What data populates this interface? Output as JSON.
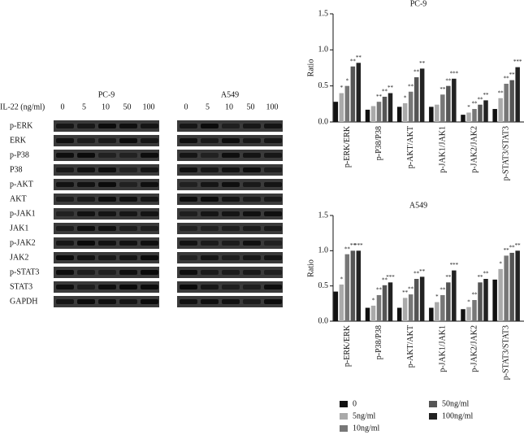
{
  "blot": {
    "lines": [
      "PC-9",
      "A549"
    ],
    "dose_label": "IL-22 (ng/ml)",
    "doses": [
      "0",
      "5",
      "10",
      "50",
      "100"
    ],
    "proteins": [
      "p-ERK",
      "ERK",
      "p-P38",
      "P38",
      "p-AKT",
      "AKT",
      "p-JAK1",
      "JAK1",
      "p-JAK2",
      "JAK2",
      "p-STAT3",
      "STAT3",
      "GAPDH"
    ]
  },
  "chart_data": [
    {
      "type": "bar",
      "title": "PC-9",
      "ylabel": "Ratio",
      "ylim": [
        0,
        1.5
      ],
      "yticks": [
        0.0,
        0.5,
        1.0,
        1.5
      ],
      "categories": [
        "p-ERK/ERK",
        "p-P38/P38",
        "p-AKT/AKT",
        "p-JAK1/JAK1",
        "p-JAK2/JAK2",
        "p-STAT3/STAT3"
      ],
      "series": [
        {
          "color": "#111111",
          "values": [
            0.28,
            0.17,
            0.21,
            0.21,
            0.1,
            0.18
          ]
        },
        {
          "color": "#aaaaaa",
          "values": [
            0.4,
            0.22,
            0.26,
            0.24,
            0.13,
            0.33
          ],
          "significance": [
            "*",
            null,
            "*",
            null,
            "*",
            "**"
          ]
        },
        {
          "color": "#777777",
          "values": [
            0.5,
            0.28,
            0.42,
            0.38,
            0.18,
            0.53
          ],
          "significance": [
            "*",
            "**",
            "**",
            "**",
            "**",
            "**"
          ]
        },
        {
          "color": "#555555",
          "values": [
            0.77,
            0.35,
            0.62,
            0.5,
            0.24,
            0.58
          ],
          "significance": [
            "**",
            "**",
            "**",
            "**",
            "**",
            "**"
          ]
        },
        {
          "color": "#222222",
          "values": [
            0.82,
            0.4,
            0.74,
            0.6,
            0.3,
            0.76
          ],
          "significance": [
            "**",
            "**",
            "**",
            "***",
            "**",
            "***"
          ]
        }
      ]
    },
    {
      "type": "bar",
      "title": "A549",
      "ylabel": "Ratio",
      "ylim": [
        0,
        1.5
      ],
      "yticks": [
        0.0,
        0.5,
        1.0,
        1.5
      ],
      "categories": [
        "p-ERK/ERK",
        "p-P38/P38",
        "p-AKT/AKT",
        "p-JAK1/JAK1",
        "p-JAK2/JAK2",
        "p-STAT3/STAT3"
      ],
      "series": [
        {
          "name": "0",
          "color": "#111111",
          "values": [
            0.42,
            0.19,
            0.19,
            0.19,
            0.17,
            0.59
          ]
        },
        {
          "name": "5ng/ml",
          "color": "#aaaaaa",
          "values": [
            0.52,
            0.22,
            0.33,
            0.27,
            0.2,
            0.74
          ],
          "significance": [
            "*",
            "*",
            "**",
            "*",
            "*",
            "*"
          ]
        },
        {
          "name": "10ng/ml",
          "color": "#777777",
          "values": [
            0.95,
            0.37,
            0.38,
            0.37,
            0.3,
            0.93
          ],
          "significance": [
            "**",
            "**",
            "**",
            "**",
            "**",
            "**"
          ]
        },
        {
          "name": "50ng/ml",
          "color": "#555555",
          "values": [
            1.0,
            0.51,
            0.6,
            0.55,
            0.55,
            0.97
          ],
          "significance": [
            "**",
            "**",
            "**",
            "**",
            "**",
            "**"
          ]
        },
        {
          "name": "100ng/ml",
          "color": "#222222",
          "values": [
            1.0,
            0.55,
            0.63,
            0.72,
            0.6,
            1.0
          ],
          "significance": [
            "***",
            "***",
            "**",
            "***",
            "**",
            "**"
          ]
        }
      ]
    }
  ]
}
